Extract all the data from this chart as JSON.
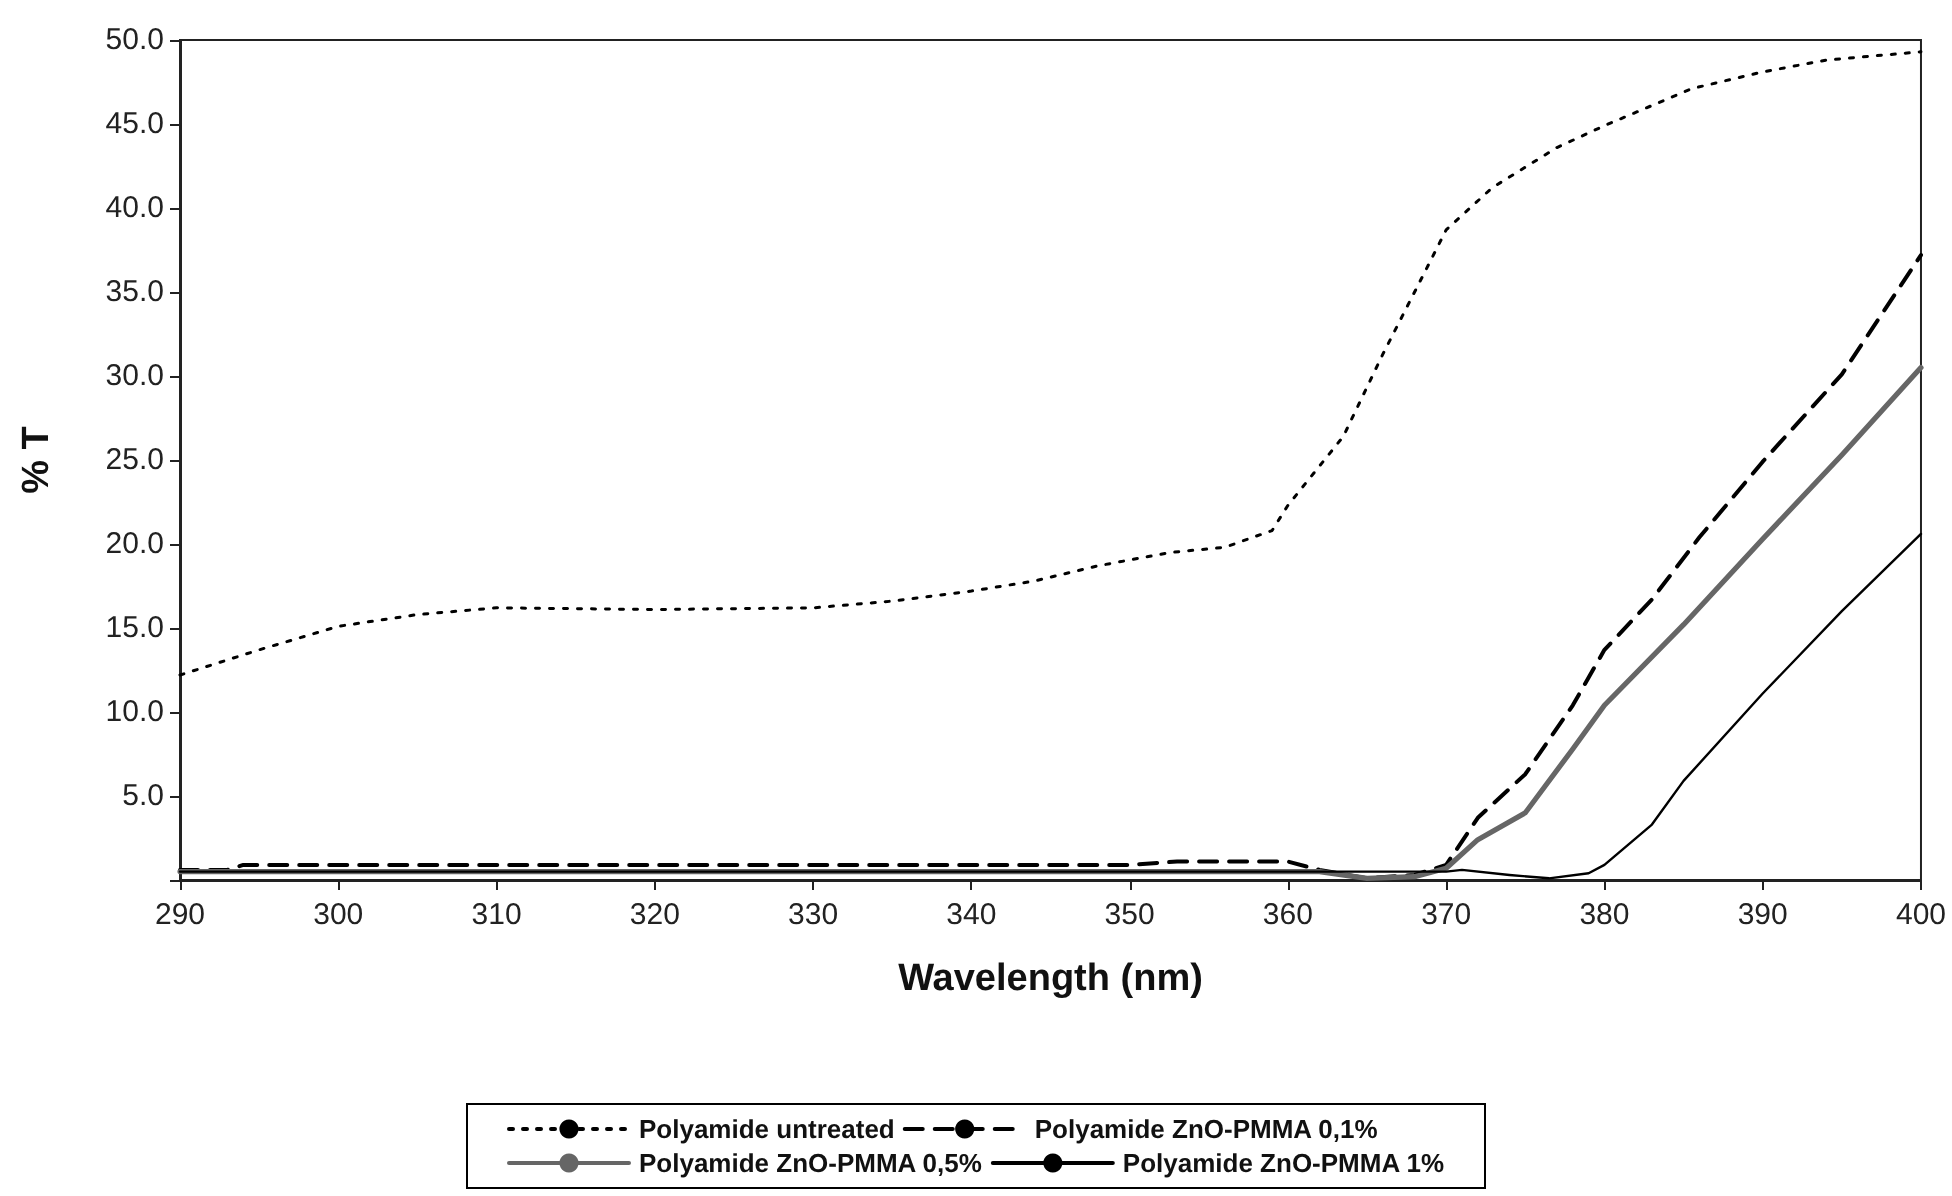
{
  "chart_data": {
    "type": "line",
    "xlabel": "Wavelength (nm)",
    "ylabel": "% T",
    "xlim": [
      290,
      400
    ],
    "xticks": [
      290,
      300,
      310,
      320,
      330,
      340,
      350,
      360,
      370,
      380,
      390,
      400
    ],
    "ylim": [
      0,
      50
    ],
    "yticks": [
      {
        "value": 0,
        "label": null
      },
      {
        "value": 5,
        "label": "5.0"
      },
      {
        "value": 10,
        "label": "10.0"
      },
      {
        "value": 15,
        "label": "15.0"
      },
      {
        "value": 20,
        "label": "20.0"
      },
      {
        "value": 25,
        "label": "25.0"
      },
      {
        "value": 30,
        "label": "30.0"
      },
      {
        "value": 35,
        "label": "35.0"
      },
      {
        "value": 40,
        "label": "40.0"
      },
      {
        "value": 45,
        "label": "45.0"
      },
      {
        "value": 50,
        "label": "50.0"
      }
    ],
    "grid": false,
    "legend": "bottom",
    "marker": "none",
    "series": [
      {
        "name": "Polyamide untreated",
        "color": "#000000",
        "line_style": "dotted",
        "x": [
          290,
          295,
          300,
          305,
          310,
          320,
          330,
          335,
          340,
          344,
          348,
          352.6,
          356,
          359,
          360,
          363.5,
          366,
          368.6,
          370,
          372.9,
          377,
          380,
          385.5,
          390,
          394,
          400
        ],
        "values": [
          12.2,
          13.7,
          15.1,
          15.8,
          16.2,
          16.1,
          16.2,
          16.6,
          17.2,
          17.8,
          18.7,
          19.5,
          19.8,
          20.8,
          22.3,
          26.4,
          31.3,
          36.1,
          38.7,
          41.2,
          43.6,
          44.9,
          47.1,
          48.1,
          48.8,
          49.3
        ]
      },
      {
        "name": "Polyamide ZnO-PMMA 0,1%",
        "color": "#000000",
        "line_style": "dashed",
        "x": [
          290,
          293,
          294,
          350,
          353,
          360,
          362,
          365,
          368,
          370,
          372,
          375,
          378,
          380,
          383,
          386,
          390,
          395,
          400
        ],
        "values": [
          0.6,
          0.6,
          0.9,
          0.9,
          1.1,
          1.1,
          0.6,
          0.1,
          0.3,
          0.9,
          3.7,
          6.3,
          10.4,
          13.7,
          16.7,
          20.4,
          24.9,
          30.1,
          37.2
        ]
      },
      {
        "name": "Polyamide ZnO-PMMA 0,5%",
        "color": "#666666",
        "line_style": "solid",
        "x": [
          290,
          362,
          365,
          368,
          370,
          372,
          375,
          378,
          380,
          385,
          390,
          395,
          400
        ],
        "values": [
          0.5,
          0.5,
          0.1,
          0.2,
          0.7,
          2.4,
          4.0,
          7.8,
          10.4,
          15.2,
          20.3,
          25.3,
          30.5
        ]
      },
      {
        "name": "Polyamide ZnO-PMMA 1%",
        "color": "#000000",
        "line_style": "solid",
        "x": [
          290,
          370,
          371,
          374,
          376.5,
          379,
          380,
          383,
          385,
          390,
          395,
          400
        ],
        "values": [
          0.5,
          0.5,
          0.6,
          0.3,
          0.1,
          0.4,
          0.9,
          3.3,
          5.9,
          11.1,
          16.0,
          20.6
        ]
      }
    ]
  }
}
